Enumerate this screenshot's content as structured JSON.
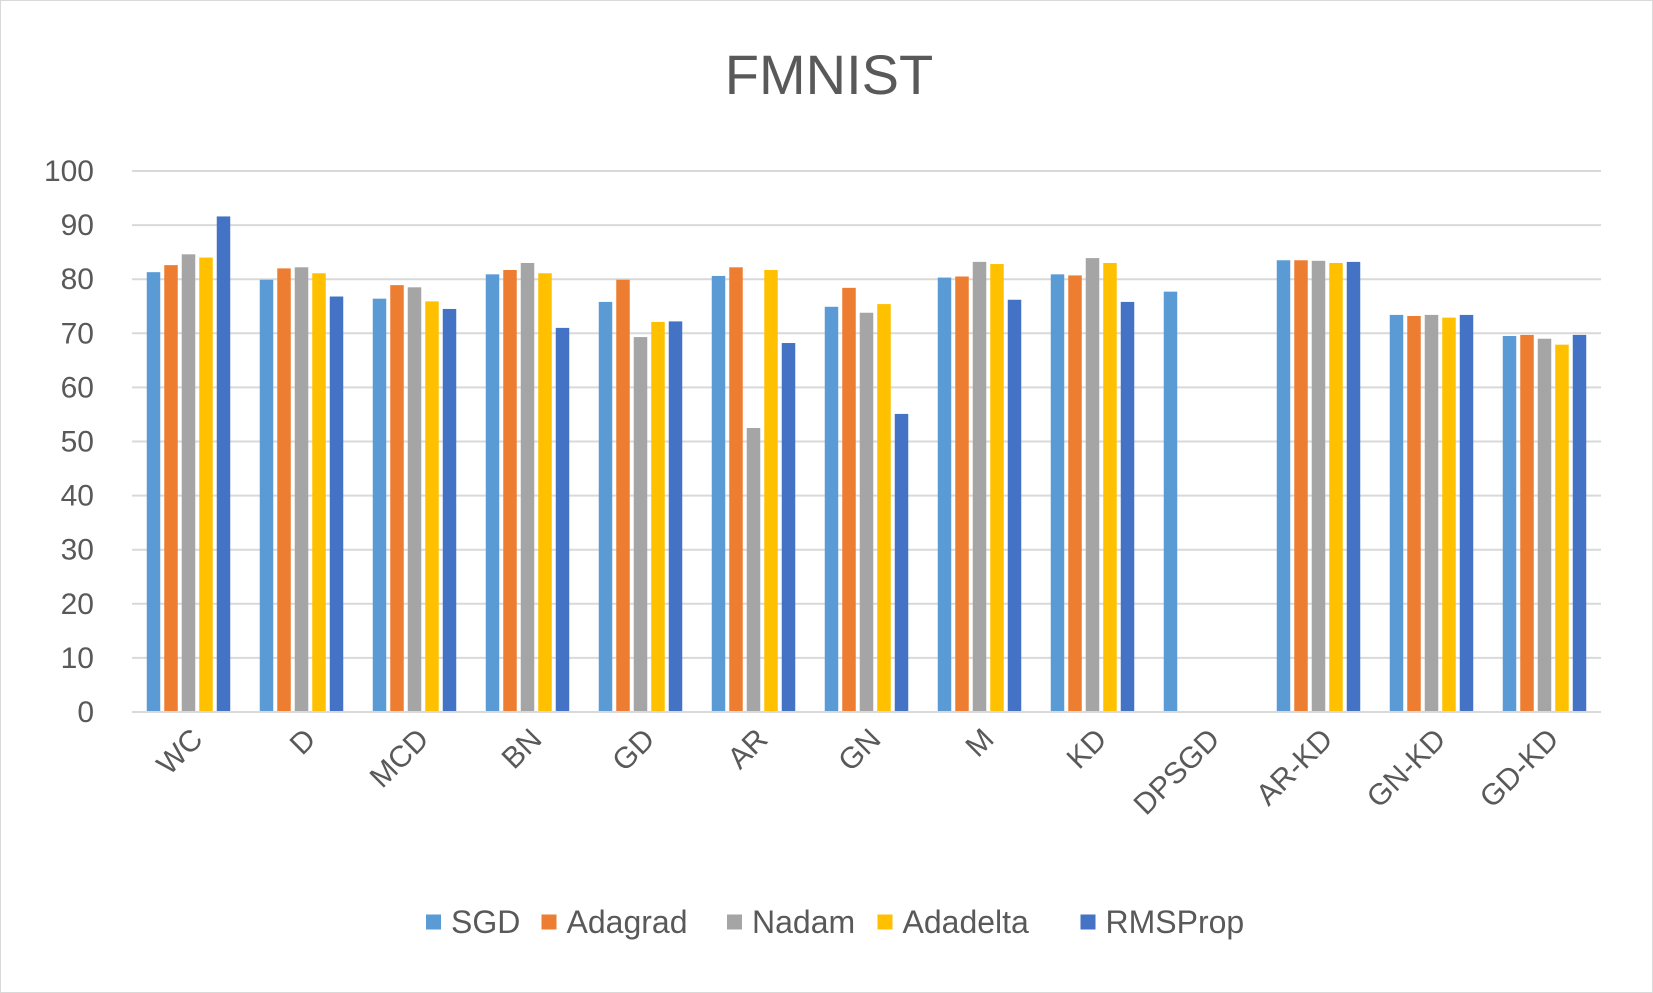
{
  "chart_data": {
    "type": "bar",
    "title": "FMNIST",
    "xlabel": "",
    "ylabel": "",
    "ylim": [
      0,
      100
    ],
    "yticks": [
      0,
      10,
      20,
      30,
      40,
      50,
      60,
      70,
      80,
      90,
      100
    ],
    "grid": true,
    "legend_position": "bottom",
    "categories": [
      "WC",
      "D",
      "MCD",
      "BN",
      "GD",
      "AR",
      "GN",
      "M",
      "KD",
      "DPSGD",
      "AR-KD",
      "GN-KD",
      "GD-KD"
    ],
    "series": [
      {
        "name": "SGD",
        "color": "#5b9bd5",
        "values": [
          81.3,
          79.9,
          76.4,
          80.9,
          75.8,
          80.6,
          74.9,
          80.3,
          80.9,
          77.7,
          83.5,
          73.4,
          69.5
        ]
      },
      {
        "name": "Adagrad",
        "color": "#ed7d31",
        "values": [
          82.6,
          82.0,
          78.9,
          81.7,
          79.9,
          82.2,
          78.4,
          80.5,
          80.7,
          null,
          83.5,
          73.2,
          69.7
        ]
      },
      {
        "name": "Nadam",
        "color": "#a5a5a5",
        "values": [
          84.6,
          82.2,
          78.5,
          83.0,
          69.3,
          52.5,
          73.8,
          83.2,
          83.9,
          null,
          83.4,
          73.4,
          69.0
        ]
      },
      {
        "name": "Adadelta",
        "color": "#ffc000",
        "values": [
          84.0,
          81.1,
          75.9,
          81.1,
          72.1,
          81.7,
          75.4,
          82.8,
          83.0,
          null,
          83.0,
          72.9,
          67.9
        ]
      },
      {
        "name": "RMSProp",
        "color": "#4472c4",
        "values": [
          91.6,
          76.8,
          74.5,
          71.0,
          72.2,
          68.2,
          55.1,
          76.2,
          75.8,
          null,
          83.2,
          73.4,
          69.7
        ]
      }
    ]
  }
}
